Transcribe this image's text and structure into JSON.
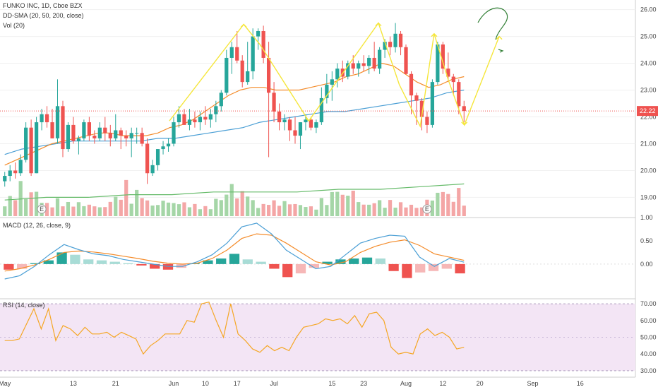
{
  "colors": {
    "up": "#26a69a",
    "down": "#ef5350",
    "vol_up": "#a5d6a7",
    "vol_down": "#f4a6a6",
    "sma20": "#f48c2b",
    "sma50": "#4b9fd5",
    "sma200": "#66bb6a",
    "macd_line": "#4b9fd5",
    "signal_line": "#f48c2b",
    "rsi_line": "#f5a623",
    "rsi_band": "#f3e5f5",
    "annotation": "#f5e63b",
    "annotation_green": "#2e7d32",
    "grid": "#f0f0f0",
    "price_line": "#ef5350"
  },
  "legend": {
    "title": "FUNKO INC, 1D, Cboe BZX",
    "sma": "DD-SMA (20, 50, 200, close)",
    "vol": "Vol (20)",
    "macd": "MACD (12, 26, close, 9)",
    "rsi": "RSI (14, close)"
  },
  "last_price_label": "22.22",
  "chart_data": [
    {
      "type": "candlestick",
      "title": "FUNKO INC, 1D, Cboe BZX",
      "ylim": [
        18.3,
        26.2
      ],
      "y_ticks": [
        "19.00",
        "20.00",
        "21.00",
        "22.00",
        "23.00",
        "24.00",
        "25.00",
        "26.00"
      ],
      "x_ticks": [
        "May",
        "13",
        "21",
        "Jun",
        "10",
        "17",
        "Jul",
        "15",
        "23",
        "Aug",
        "12",
        "20",
        "Sep",
        "16"
      ],
      "last_price": 22.22,
      "earnings_marker": "E",
      "candles": [
        [
          19.6,
          19.95,
          19.4,
          19.8
        ],
        [
          19.8,
          20.2,
          19.6,
          20.0
        ],
        [
          20.0,
          20.3,
          19.7,
          19.9
        ],
        [
          19.9,
          20.6,
          19.8,
          20.4
        ],
        [
          20.4,
          21.8,
          20.3,
          21.6
        ],
        [
          21.6,
          21.9,
          19.8,
          19.9
        ],
        [
          19.9,
          22.0,
          19.9,
          21.8
        ],
        [
          21.8,
          22.3,
          21.5,
          22.1
        ],
        [
          22.1,
          22.4,
          21.6,
          21.8
        ],
        [
          21.8,
          22.3,
          21.2,
          21.2
        ],
        [
          21.2,
          23.4,
          21.0,
          22.4
        ],
        [
          22.4,
          22.6,
          20.5,
          20.8
        ],
        [
          20.8,
          21.8,
          20.7,
          21.7
        ],
        [
          21.7,
          22.0,
          21.0,
          21.1
        ],
        [
          21.1,
          21.3,
          20.6,
          21.2
        ],
        [
          21.2,
          21.9,
          21.1,
          21.8
        ],
        [
          21.8,
          22.0,
          21.1,
          21.3
        ],
        [
          21.3,
          21.5,
          21.0,
          21.2
        ],
        [
          21.2,
          21.8,
          21.1,
          21.6
        ],
        [
          21.6,
          22.0,
          21.1,
          21.4
        ],
        [
          21.4,
          21.7,
          20.9,
          21.2
        ],
        [
          21.2,
          22.1,
          21.1,
          21.5
        ],
        [
          21.5,
          21.6,
          20.8,
          21.3
        ],
        [
          21.3,
          21.5,
          20.9,
          21.2
        ],
        [
          21.2,
          21.6,
          20.5,
          21.4
        ],
        [
          21.4,
          21.6,
          21.0,
          21.4
        ],
        [
          21.4,
          21.6,
          20.9,
          21.0
        ],
        [
          21.0,
          21.2,
          19.5,
          19.9
        ],
        [
          19.9,
          20.4,
          19.8,
          20.2
        ],
        [
          20.2,
          20.8,
          20.0,
          20.8
        ],
        [
          20.8,
          21.1,
          20.6,
          20.9
        ],
        [
          20.9,
          21.2,
          20.7,
          21.0
        ],
        [
          21.0,
          22.0,
          20.9,
          21.8
        ],
        [
          21.8,
          22.4,
          21.6,
          22.1
        ],
        [
          22.1,
          22.3,
          21.7,
          21.7
        ],
        [
          21.7,
          22.3,
          21.5,
          21.9
        ],
        [
          21.9,
          22.2,
          21.6,
          21.8
        ],
        [
          21.8,
          22.2,
          21.5,
          22.0
        ],
        [
          22.0,
          22.4,
          21.7,
          21.9
        ],
        [
          21.9,
          22.3,
          21.6,
          22.1
        ],
        [
          22.1,
          22.6,
          21.8,
          22.4
        ],
        [
          22.4,
          23.0,
          22.2,
          22.9
        ],
        [
          22.9,
          24.5,
          22.8,
          24.2
        ],
        [
          24.2,
          24.8,
          23.6,
          24.6
        ],
        [
          24.6,
          25.2,
          24.0,
          24.1
        ],
        [
          24.1,
          24.3,
          23.1,
          23.3
        ],
        [
          23.3,
          24.8,
          23.2,
          23.7
        ],
        [
          23.7,
          25.3,
          23.4,
          25.0
        ],
        [
          25.0,
          25.3,
          24.5,
          25.2
        ],
        [
          25.2,
          25.4,
          24.0,
          24.2
        ],
        [
          24.2,
          24.8,
          20.5,
          22.9
        ],
        [
          22.9,
          23.3,
          21.8,
          22.2
        ],
        [
          22.2,
          22.5,
          21.5,
          21.8
        ],
        [
          21.8,
          22.1,
          21.5,
          21.9
        ],
        [
          21.9,
          22.0,
          21.1,
          21.5
        ],
        [
          21.5,
          22.0,
          21.0,
          21.3
        ],
        [
          21.3,
          21.8,
          20.8,
          21.8
        ],
        [
          21.8,
          22.1,
          21.5,
          21.9
        ],
        [
          21.9,
          22.0,
          21.5,
          21.6
        ],
        [
          21.6,
          21.9,
          21.4,
          21.8
        ],
        [
          21.8,
          23.1,
          21.7,
          22.7
        ],
        [
          22.7,
          23.6,
          22.5,
          23.2
        ],
        [
          23.2,
          23.7,
          22.6,
          23.4
        ],
        [
          23.4,
          24.0,
          23.1,
          23.8
        ],
        [
          23.8,
          24.1,
          23.3,
          23.5
        ],
        [
          23.5,
          24.1,
          23.4,
          24.0
        ],
        [
          24.0,
          24.3,
          23.6,
          23.8
        ],
        [
          23.8,
          24.1,
          23.5,
          24.0
        ],
        [
          24.0,
          24.3,
          23.7,
          23.9
        ],
        [
          23.9,
          24.3,
          23.6,
          24.2
        ],
        [
          24.2,
          24.8,
          23.7,
          23.8
        ],
        [
          23.8,
          24.6,
          23.6,
          24.5
        ],
        [
          24.5,
          24.9,
          24.2,
          24.8
        ],
        [
          24.8,
          25.0,
          24.3,
          24.6
        ],
        [
          24.6,
          25.5,
          24.4,
          25.1
        ],
        [
          25.1,
          25.2,
          24.3,
          24.6
        ],
        [
          24.6,
          24.7,
          23.6,
          23.6
        ],
        [
          23.6,
          23.7,
          22.1,
          22.8
        ],
        [
          22.8,
          22.9,
          21.7,
          22.6
        ],
        [
          22.6,
          22.7,
          21.5,
          22.0
        ],
        [
          22.0,
          22.2,
          21.4,
          21.7
        ],
        [
          21.7,
          23.4,
          21.6,
          23.3
        ],
        [
          23.3,
          24.8,
          23.2,
          24.7
        ],
        [
          24.7,
          24.8,
          23.6,
          23.8
        ],
        [
          23.8,
          24.4,
          23.3,
          23.5
        ],
        [
          23.5,
          23.6,
          22.8,
          23.3
        ],
        [
          23.3,
          23.4,
          22.1,
          22.4
        ],
        [
          22.4,
          22.6,
          21.8,
          22.22
        ]
      ],
      "sma20": [
        20.2,
        20.4,
        20.6,
        20.8,
        21.0,
        21.1,
        21.2,
        21.3,
        21.4,
        21.4,
        21.3,
        21.3,
        21.3,
        21.4,
        21.6,
        21.7,
        21.9,
        22.2,
        22.5,
        22.8,
        23.0,
        23.1,
        23.1,
        23.0,
        23.0,
        23.0,
        23.1,
        23.2,
        23.3,
        23.5,
        23.6,
        23.8,
        24.0,
        23.9,
        23.6,
        23.3,
        23.1,
        23.2,
        23.4,
        23.5
      ],
      "sma50": [
        20.6,
        20.8,
        20.9,
        21.0,
        21.1,
        21.1,
        21.1,
        21.1,
        21.1,
        21.2,
        21.2,
        21.3,
        21.4,
        21.5,
        21.6,
        21.8,
        21.9,
        22.0,
        22.1,
        22.2,
        22.2,
        22.3,
        22.4,
        22.5,
        22.6,
        22.7,
        22.9,
        23.0
      ],
      "sma200": [
        18.9,
        19.0,
        19.0,
        19.1,
        19.1,
        19.2,
        19.2,
        19.2,
        19.3,
        19.3,
        19.4,
        19.5
      ],
      "volume": [
        0.9,
        1.0,
        1.2,
        1.8,
        1.1,
        1.3,
        1.4,
        0.8,
        0.7,
        0.6,
        0.9,
        0.8,
        0.7,
        0.8,
        0.7,
        0.7,
        0.6,
        0.6,
        0.5,
        0.5
      ],
      "annotations": [
        [
          [
            21.8,
            21.8
          ],
          [
            25.5,
            25.5
          ]
        ],
        [
          [
            21.9,
            21.9
          ],
          [
            25.5,
            25.5
          ]
        ],
        [
          [
            21.8,
            21.8
          ],
          [
            25.1,
            25.1
          ]
        ],
        [
          [
            21.8,
            21.8
          ],
          [
            24.9,
            24.9
          ]
        ]
      ]
    },
    {
      "type": "histogram+line",
      "title": "MACD (12, 26, close, 9)",
      "ylim": [
        -0.7,
        1.0
      ],
      "y_ticks": [
        "1.00",
        "0.50",
        "0.00"
      ],
      "macd": [
        -0.32,
        -0.25,
        -0.05,
        0.2,
        0.42,
        0.31,
        0.22,
        0.18,
        0.1,
        0.05,
        0.0,
        -0.05,
        -0.05,
        0.05,
        0.2,
        0.45,
        0.8,
        0.88,
        0.65,
        0.3,
        0.1,
        -0.1,
        -0.05,
        0.2,
        0.45,
        0.55,
        0.62,
        0.6,
        0.15,
        -0.05,
        0.12,
        0.04
      ],
      "signal": [
        -0.15,
        -0.1,
        -0.02,
        0.1,
        0.25,
        0.28,
        0.26,
        0.22,
        0.17,
        0.12,
        0.06,
        0.02,
        0.0,
        0.02,
        0.12,
        0.3,
        0.55,
        0.65,
        0.62,
        0.45,
        0.25,
        0.05,
        -0.02,
        0.05,
        0.25,
        0.38,
        0.47,
        0.52,
        0.4,
        0.22,
        0.15,
        0.08
      ],
      "histogram": [
        -0.12,
        -0.1,
        0.02,
        0.08,
        0.25,
        0.2,
        0.1,
        0.08,
        0.05,
        0.02,
        -0.03,
        -0.1,
        -0.12,
        -0.08,
        0.02,
        0.08,
        0.12,
        0.22,
        0.1,
        0.05,
        -0.1,
        -0.28,
        -0.2,
        -0.08,
        0.05,
        0.1,
        0.12,
        0.14,
        0.12,
        -0.15,
        -0.3,
        -0.18,
        -0.15,
        -0.1,
        -0.2
      ]
    },
    {
      "type": "line",
      "title": "RSI (14, close)",
      "ylim": [
        27,
        73
      ],
      "y_ticks": [
        "70.00",
        "60.00",
        "50.00",
        "40.00",
        "30.00"
      ],
      "band": [
        30,
        70
      ],
      "values": [
        48,
        48,
        49,
        58,
        67,
        55,
        67,
        48,
        57,
        55,
        51,
        56,
        52,
        52,
        53,
        50,
        53,
        51,
        49,
        40,
        45,
        48,
        52,
        52,
        52,
        60,
        59,
        70,
        71,
        60,
        50,
        70,
        52,
        48,
        43,
        41,
        45,
        42,
        44,
        42,
        50,
        56,
        57,
        58,
        61,
        60,
        61,
        58,
        63,
        56,
        64,
        65,
        60,
        44,
        40,
        41,
        40,
        52,
        55,
        51,
        53,
        50,
        43,
        44
      ]
    }
  ]
}
